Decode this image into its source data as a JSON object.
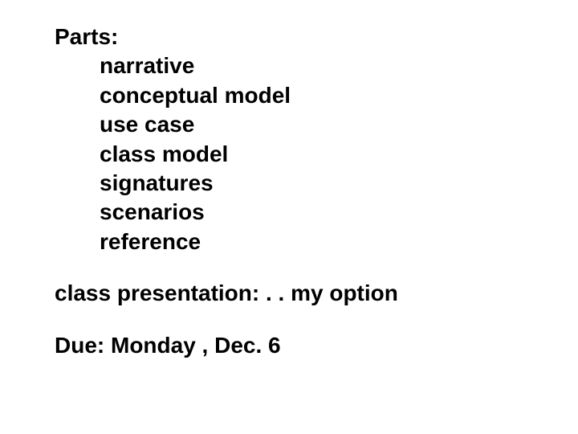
{
  "heading": "Parts:",
  "items": [
    "narrative",
    "conceptual model",
    "use case",
    "class model",
    "signatures",
    "scenarios",
    "reference"
  ],
  "presentation_line": "class presentation:   . . my option",
  "due_line": "Due:  Monday , Dec. 6",
  "text_color": "#000000",
  "background_color": "#ffffff",
  "font_size": 28,
  "font_weight": "bold"
}
